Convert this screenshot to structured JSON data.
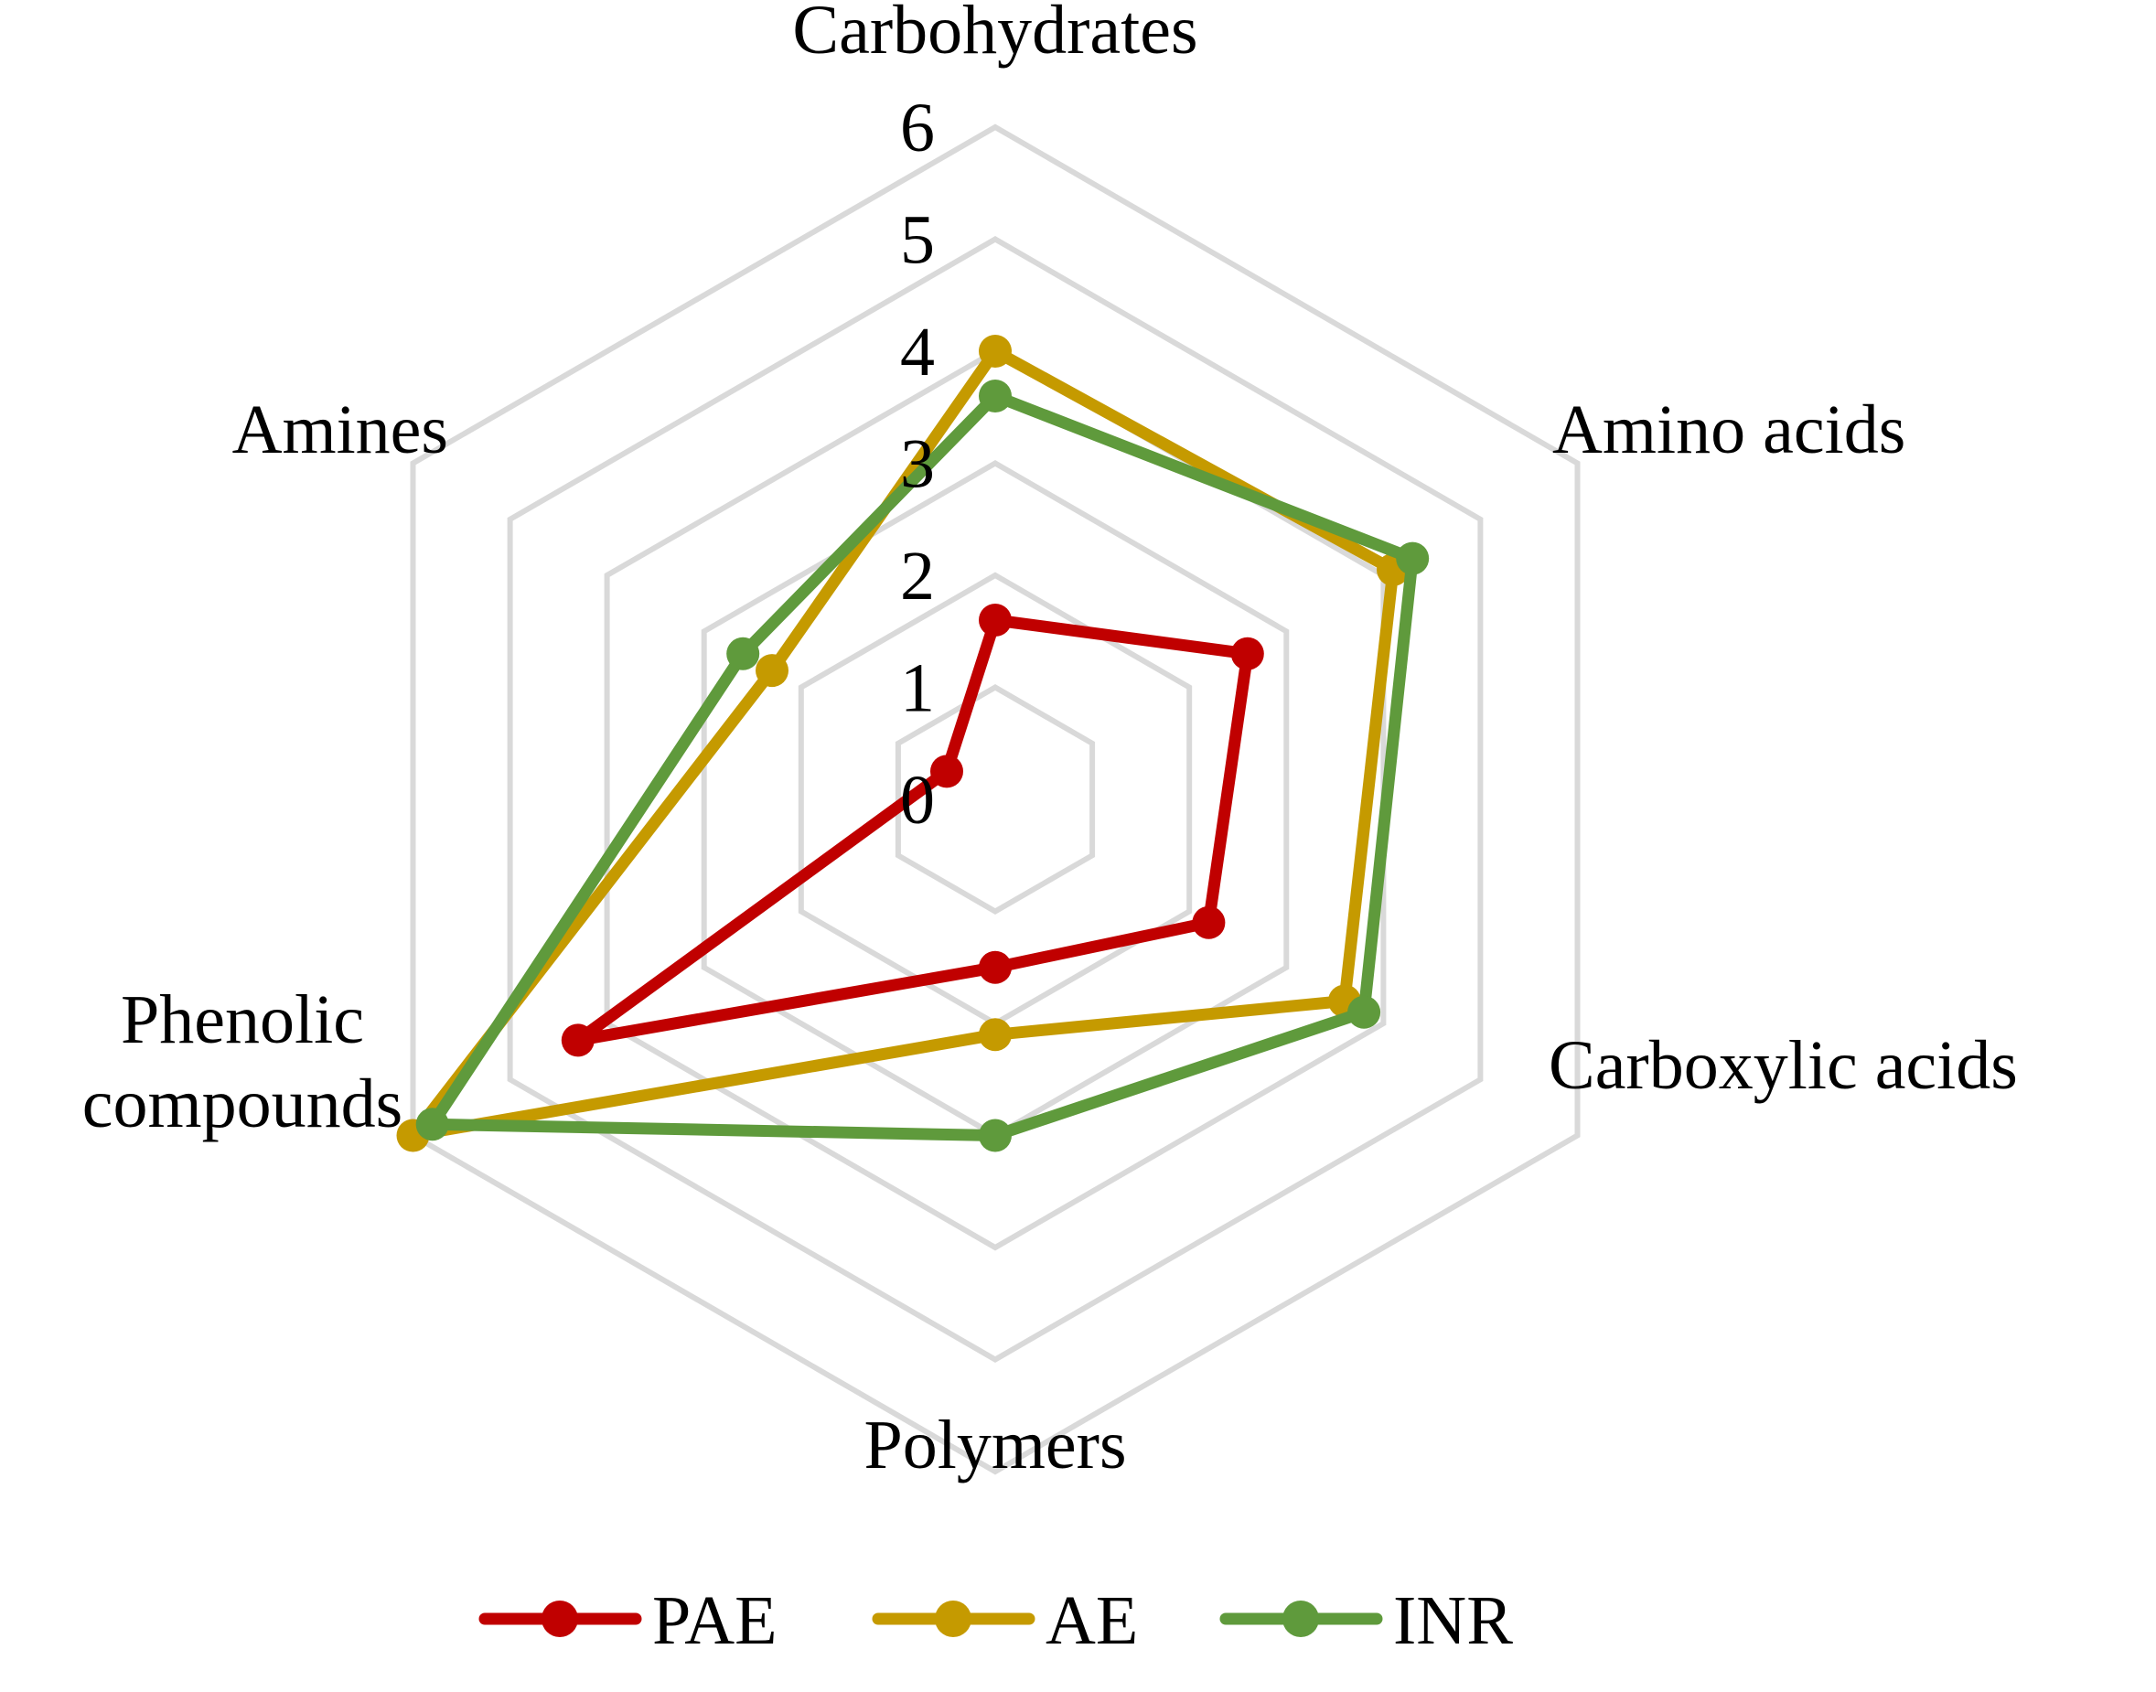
{
  "chart_data": {
    "type": "radar",
    "categories": [
      "Carbohydrates",
      "Amino acids",
      "Carboxylic acids",
      "Polymers",
      "Phenolic compounds",
      "Amines"
    ],
    "category_lines": [
      [
        "Carbohydrates"
      ],
      [
        "Amino acids"
      ],
      [
        "Carboxylic acids"
      ],
      [
        "Polymers"
      ],
      [
        "Phenolic",
        "compounds"
      ],
      [
        "Amines"
      ]
    ],
    "r_ticks": [
      "0",
      "1",
      "2",
      "3",
      "4",
      "5",
      "6"
    ],
    "rlim": [
      0,
      6
    ],
    "grid": true,
    "legend_position": "bottom",
    "series": [
      {
        "name": "PAE",
        "color": "#C00000",
        "values": [
          1.6,
          2.6,
          2.2,
          1.5,
          4.3,
          0.5
        ]
      },
      {
        "name": "AE",
        "color": "#C59A00",
        "values": [
          4.0,
          4.1,
          3.6,
          2.1,
          6.0,
          2.3
        ]
      },
      {
        "name": "INR",
        "color": "#5F9A3C",
        "values": [
          3.6,
          4.3,
          3.8,
          3.0,
          5.8,
          2.6
        ]
      }
    ]
  }
}
